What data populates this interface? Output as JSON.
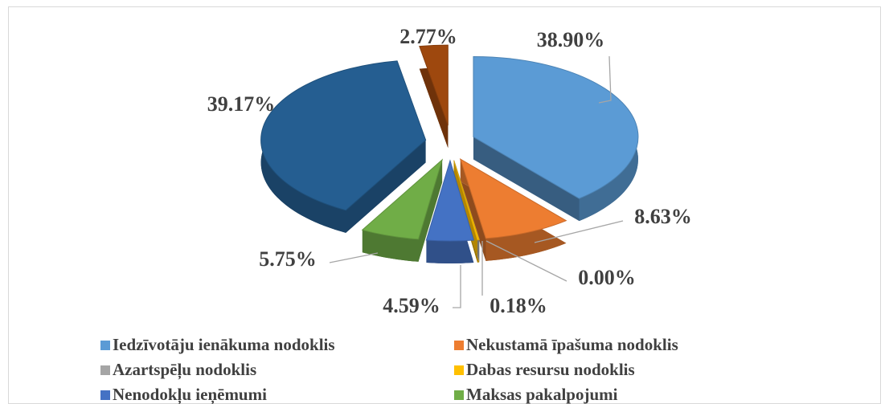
{
  "chart_data": {
    "type": "pie3d",
    "categories": [
      "Iedzīvotāju ienākuma nodoklis",
      "Nekustamā īpašuma nodoklis",
      "Azartspēļu nodoklis",
      "Dabas resursu nodoklis",
      "Nenodokļu ieņēmumi",
      "Maksas pakalpojumi",
      null,
      null
    ],
    "values": [
      38.9,
      8.63,
      0.0,
      0.18,
      4.59,
      5.75,
      39.17,
      2.77
    ],
    "value_labels": [
      "38.90%",
      "8.63%",
      "0.00%",
      "0.18%",
      "4.59%",
      "5.75%",
      "39.17%",
      "2.77%"
    ],
    "colors": [
      "#5b9bd5",
      "#ed7d31",
      "#a5a5a5",
      "#ffc000",
      "#4472c4",
      "#70ad47",
      "#255e91",
      "#9e480e"
    ],
    "legend": "bottom"
  }
}
